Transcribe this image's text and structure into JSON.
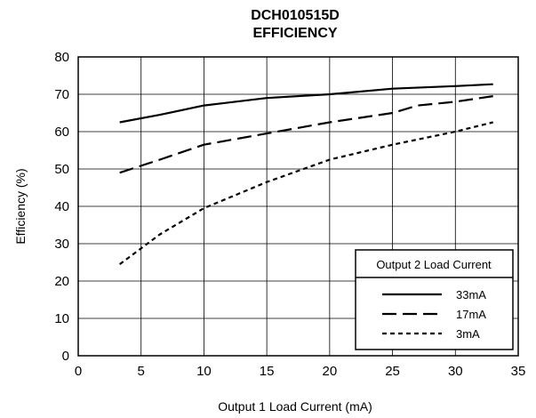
{
  "chart_data": {
    "type": "line",
    "title": "DCH010515D",
    "subtitle": "EFFICIENCY",
    "xlabel": "Output 1 Load Current (mA)",
    "ylabel": "Efficiency (%)",
    "xlim": [
      0,
      35
    ],
    "ylim": [
      0,
      80
    ],
    "xticks": [
      0,
      5,
      10,
      15,
      20,
      25,
      30,
      35
    ],
    "yticks": [
      0,
      10,
      20,
      30,
      40,
      50,
      60,
      70,
      80
    ],
    "grid": true,
    "legend": {
      "title": "Output 2 Load Current",
      "placement": "bottom-right"
    },
    "series": [
      {
        "name": "33mA",
        "style": "solid",
        "x": [
          3.3,
          6.5,
          10,
          15,
          20,
          25,
          30,
          33
        ],
        "y": [
          62.5,
          64.5,
          67,
          69,
          70,
          71.5,
          72.2,
          72.7
        ]
      },
      {
        "name": "17mA",
        "style": "long-dash",
        "x": [
          3.3,
          6.5,
          10,
          15,
          20,
          25,
          27,
          30,
          33
        ],
        "y": [
          49,
          52.5,
          56.5,
          59.5,
          62.5,
          65,
          67,
          68,
          69.5
        ]
      },
      {
        "name": "3mA",
        "style": "short-dash",
        "x": [
          3.3,
          6.5,
          10,
          15,
          20,
          25,
          30,
          33
        ],
        "y": [
          24.5,
          32.5,
          39.5,
          46.5,
          52.5,
          56.5,
          60,
          62.5
        ]
      }
    ]
  },
  "colors": {
    "line": "#000000",
    "grid": "#000000",
    "background": "#ffffff"
  }
}
